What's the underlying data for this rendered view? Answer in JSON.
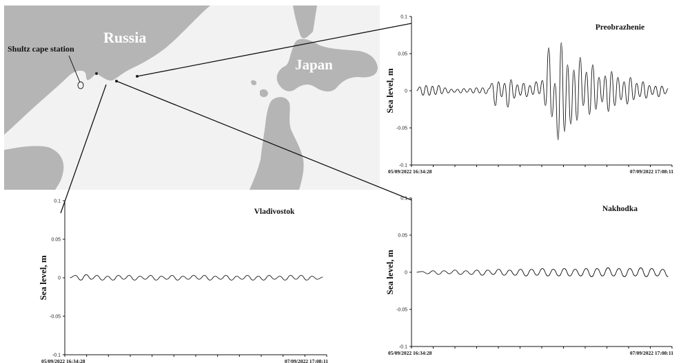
{
  "map": {
    "country_russia": "Russia",
    "country_japan": "Japan",
    "station_label": "Shultz cape station",
    "land_color": "#b5b5b5",
    "sea_color": "#f2f2f2"
  },
  "chart_data": [
    {
      "id": "preobrazhenie",
      "type": "line",
      "title": "Preobrazhenie",
      "ylabel": "Sea level, m",
      "xlabel": "",
      "x_start_label": "05/09/2022 16:34:28",
      "x_end_label": "07/09/2022 17:08:11",
      "ylim": [
        -0.1,
        0.1
      ],
      "yticks": [
        0.1,
        0.05,
        0,
        -0.05,
        -0.1
      ],
      "ytick_labels": [
        "0.1",
        "0.05",
        "0",
        "-0.05",
        "-0.1"
      ],
      "grid": false,
      "series": [
        {
          "values": [
            0.0,
            0.005,
            -0.006,
            0.007,
            -0.006,
            0.006,
            -0.005,
            0.007,
            -0.004,
            0.004,
            -0.003,
            0.002,
            -0.002,
            0.002,
            -0.003,
            0.003,
            -0.002,
            0.003,
            -0.003,
            0.004,
            -0.003,
            0.004,
            -0.004,
            0.003,
            0.01,
            -0.02,
            0.012,
            -0.008,
            0.01,
            -0.022,
            0.015,
            -0.01,
            0.008,
            -0.006,
            0.01,
            -0.008,
            0.007,
            -0.005,
            0.012,
            -0.004,
            0.014,
            -0.02,
            0.058,
            -0.035,
            0.01,
            -0.066,
            0.065,
            -0.055,
            0.035,
            -0.045,
            0.028,
            -0.04,
            0.045,
            -0.02,
            0.025,
            -0.032,
            0.035,
            -0.025,
            0.018,
            -0.015,
            0.02,
            -0.028,
            0.026,
            -0.02,
            0.018,
            -0.012,
            0.012,
            -0.018,
            0.018,
            -0.012,
            0.01,
            -0.008,
            0.012,
            -0.01,
            0.007,
            -0.005,
            0.006,
            -0.008,
            0.006,
            -0.004,
            0.003
          ]
        }
      ]
    },
    {
      "id": "vladivostok",
      "type": "line",
      "title": "Vladivostok",
      "ylabel": "Sea level, m",
      "xlabel": "",
      "x_start_label": "05/09/2022 16:34:28",
      "x_end_label": "07/09/2022 17:08:11",
      "ylim": [
        -0.1,
        0.1
      ],
      "yticks": [
        0.1,
        0.05,
        0,
        -0.05,
        -0.1
      ],
      "ytick_labels": [
        "0.1",
        "0.05",
        "0",
        "-0.05",
        "-0.1"
      ],
      "grid": false,
      "series": [
        {
          "values": [
            0.0,
            0.003,
            -0.003,
            0.004,
            -0.002,
            0.003,
            -0.003,
            0.002,
            -0.003,
            0.003,
            -0.002,
            0.003,
            -0.003,
            0.002,
            -0.002,
            0.003,
            -0.003,
            0.002,
            -0.002,
            0.003,
            -0.003,
            0.002,
            -0.002,
            0.003,
            -0.002,
            0.003,
            -0.003,
            0.002,
            -0.002,
            0.003,
            -0.003,
            0.002,
            -0.002,
            0.003,
            -0.003,
            0.002,
            -0.003,
            0.003,
            -0.002,
            0.002,
            -0.003,
            0.003,
            -0.002,
            0.003,
            -0.003,
            0.002,
            -0.002,
            0.001
          ]
        }
      ]
    },
    {
      "id": "nakhodka",
      "type": "line",
      "title": "Nakhodka",
      "ylabel": "Sea level, m",
      "xlabel": "",
      "x_start_label": "05/09/2022 16:34:28",
      "x_end_label": "07/09/2022 17:08:11",
      "ylim": [
        -0.1,
        0.1
      ],
      "yticks": [
        0.1,
        0.05,
        0,
        -0.05,
        -0.1
      ],
      "ytick_labels": [
        "0.1",
        "0.05",
        "0",
        "-0.05",
        "-0.1"
      ],
      "grid": false,
      "series": [
        {
          "values": [
            0.0,
            0.001,
            -0.002,
            0.002,
            -0.003,
            0.002,
            -0.002,
            0.003,
            -0.003,
            0.002,
            -0.003,
            0.003,
            -0.004,
            0.003,
            -0.003,
            0.004,
            -0.004,
            0.003,
            -0.004,
            0.004,
            -0.005,
            0.004,
            -0.004,
            0.005,
            -0.005,
            0.004,
            -0.005,
            0.005,
            -0.005,
            0.004,
            -0.005,
            0.005,
            -0.006,
            0.005,
            -0.005,
            0.006,
            -0.005,
            0.005,
            -0.006,
            0.005,
            -0.005,
            0.006,
            -0.006,
            0.005,
            -0.005,
            0.004,
            -0.006
          ]
        }
      ]
    }
  ]
}
